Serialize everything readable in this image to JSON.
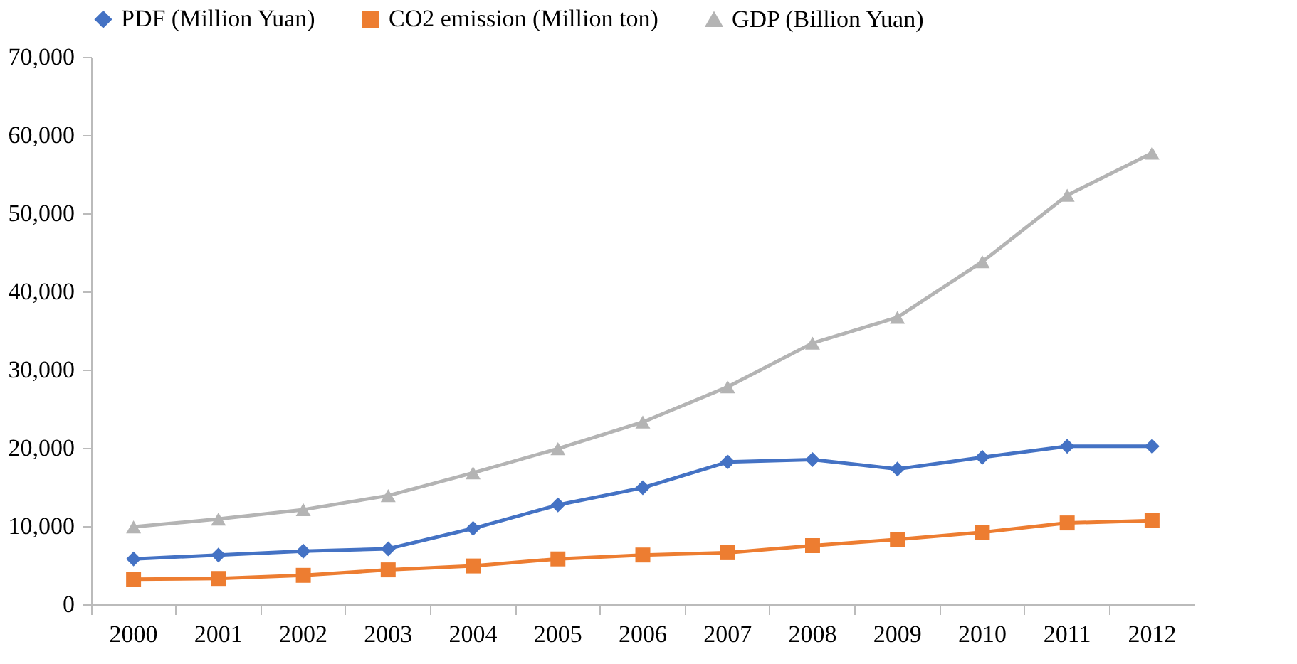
{
  "chart_data": {
    "type": "line",
    "categories": [
      "2000",
      "2001",
      "2002",
      "2003",
      "2004",
      "2005",
      "2006",
      "2007",
      "2008",
      "2009",
      "2010",
      "2011",
      "2012"
    ],
    "series": [
      {
        "name": "PDF (Million Yuan)",
        "color": "#4472c4",
        "marker": "diamond",
        "values": [
          5800,
          6300,
          6800,
          7100,
          9700,
          12700,
          14900,
          18200,
          18500,
          17300,
          18800,
          20200,
          20200
        ]
      },
      {
        "name": "CO2 emission (Million ton)",
        "color": "#ed7d31",
        "marker": "square",
        "values": [
          3200,
          3300,
          3700,
          4400,
          4900,
          5800,
          6300,
          6600,
          7500,
          8300,
          9200,
          10400,
          10700
        ]
      },
      {
        "name": "GDP (Billion Yuan)",
        "color": "#b4b4b4",
        "marker": "triangle",
        "values": [
          9900,
          10900,
          12100,
          13900,
          16800,
          19900,
          23300,
          27800,
          33400,
          36700,
          43800,
          52300,
          57700
        ]
      }
    ],
    "ylim": [
      0,
      70000
    ],
    "yticks": [
      0,
      {
        "value": 10000,
        "label": "10,000"
      },
      {
        "value": 20000,
        "label": "20,000"
      },
      {
        "value": 30000,
        "label": "30,000"
      },
      {
        "value": 40000,
        "label": "40,000"
      },
      {
        "value": 50000,
        "label": "50,000"
      },
      {
        "value": 60000,
        "label": "60,000"
      },
      {
        "value": 70000,
        "label": "70,000"
      }
    ],
    "grid": false,
    "legend": "top",
    "line_style": "solid"
  }
}
